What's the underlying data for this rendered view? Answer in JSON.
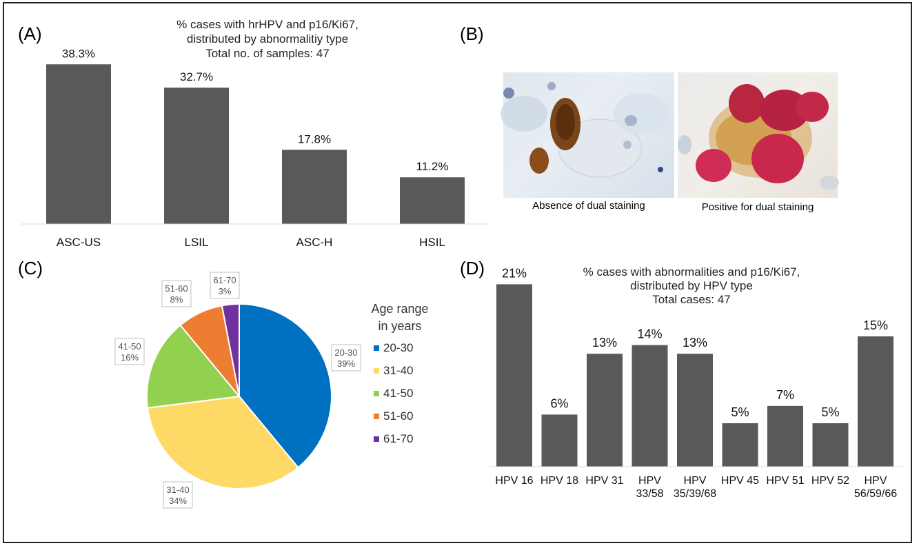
{
  "panels": {
    "a": "(A)",
    "b": "(B)",
    "c": "(C)",
    "d": "(D)"
  },
  "panel_b": {
    "left_caption": "Absence of dual staining",
    "right_caption": "Positive for dual staining"
  },
  "chart_data": [
    {
      "id": "A",
      "type": "bar",
      "title_lines": [
        "% cases with hrHPV and p16/Ki67,",
        "distributed by abnormalitiy type",
        "Total no. of samples: 47"
      ],
      "categories": [
        "ASC-US",
        "LSIL",
        "ASC-H",
        "HSIL"
      ],
      "values": [
        38.3,
        32.7,
        17.8,
        11.2
      ],
      "value_labels": [
        "38.3%",
        "32.7%",
        "17.8%",
        "11.2%"
      ],
      "ylim": [
        0,
        40
      ],
      "grid": false,
      "bar_color": "#595959"
    },
    {
      "id": "C",
      "type": "pie",
      "legend_title": "Age range\nin years",
      "legend_position": "right",
      "slices": [
        {
          "label": "20-30",
          "value": 39,
          "value_label": "39%",
          "color": "#0070C0"
        },
        {
          "label": "31-40",
          "value": 34,
          "value_label": "34%",
          "color": "#FFD966"
        },
        {
          "label": "41-50",
          "value": 16,
          "value_label": "16%",
          "color": "#92D050"
        },
        {
          "label": "51-60",
          "value": 8,
          "value_label": "8%",
          "color": "#ED7D31"
        },
        {
          "label": "61-70",
          "value": 3,
          "value_label": "3%",
          "color": "#7030A0"
        }
      ]
    },
    {
      "id": "D",
      "type": "bar",
      "title_lines": [
        "% cases with abnormalities and p16/Ki67,",
        "distributed by HPV type",
        "Total cases: 47"
      ],
      "categories": [
        [
          "HPV 16"
        ],
        [
          "HPV 18"
        ],
        [
          "HPV 31"
        ],
        [
          "HPV",
          "33/58"
        ],
        [
          "HPV",
          "35/39/68"
        ],
        [
          "HPV 45"
        ],
        [
          "HPV 51"
        ],
        [
          "HPV 52"
        ],
        [
          "HPV",
          "56/59/66"
        ]
      ],
      "values": [
        21,
        6,
        13,
        14,
        13,
        5,
        7,
        5,
        15
      ],
      "value_labels": [
        "21%",
        "6%",
        "13%",
        "14%",
        "13%",
        "5%",
        "7%",
        "5%",
        "15%"
      ],
      "ylim": [
        0,
        21
      ],
      "grid": false,
      "bar_color": "#595959"
    }
  ]
}
